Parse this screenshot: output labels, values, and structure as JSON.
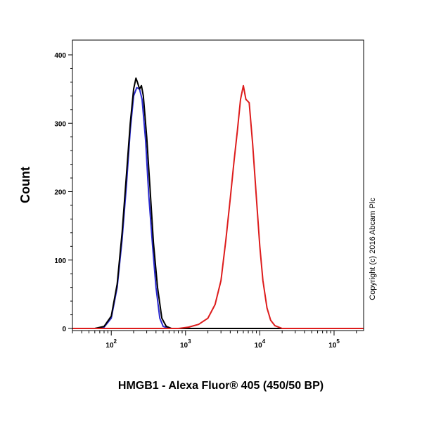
{
  "chart_data": {
    "type": "line",
    "xlabel": "HMGB1 - Alexa Fluor® 405 (450/50 BP)",
    "ylabel": "Count",
    "x_scale": "log",
    "xlim": [
      30,
      250000
    ],
    "ylim": [
      0,
      410
    ],
    "y_ticks": [
      0,
      100,
      200,
      300,
      400
    ],
    "y_tick_labels": [
      "0",
      "100",
      "200",
      "300",
      "400"
    ],
    "x_ticks": [
      100,
      1000,
      10000,
      100000
    ],
    "x_tick_labels": [
      {
        "base": "10",
        "exp": "2"
      },
      {
        "base": "10",
        "exp": "3"
      },
      {
        "base": "10",
        "exp": "4"
      },
      {
        "base": "10",
        "exp": "5"
      }
    ],
    "grid": false,
    "copyright": "Copyright (c) 2016 Abcam Plc",
    "series": [
      {
        "color": "#2a2ad0",
        "points": [
          [
            30,
            0
          ],
          [
            60,
            0
          ],
          [
            80,
            2
          ],
          [
            100,
            15
          ],
          [
            120,
            60
          ],
          [
            140,
            130
          ],
          [
            160,
            210
          ],
          [
            180,
            290
          ],
          [
            200,
            340
          ],
          [
            220,
            352
          ],
          [
            240,
            350
          ],
          [
            260,
            335
          ],
          [
            290,
            275
          ],
          [
            320,
            195
          ],
          [
            360,
            120
          ],
          [
            400,
            60
          ],
          [
            450,
            15
          ],
          [
            500,
            3
          ],
          [
            600,
            0
          ],
          [
            1000,
            0
          ],
          [
            250000,
            0
          ]
        ]
      },
      {
        "color": "#000000",
        "points": [
          [
            30,
            0
          ],
          [
            60,
            0
          ],
          [
            80,
            3
          ],
          [
            100,
            18
          ],
          [
            120,
            65
          ],
          [
            140,
            140
          ],
          [
            160,
            225
          ],
          [
            180,
            300
          ],
          [
            200,
            350
          ],
          [
            215,
            366
          ],
          [
            225,
            360
          ],
          [
            240,
            350
          ],
          [
            255,
            355
          ],
          [
            270,
            340
          ],
          [
            300,
            280
          ],
          [
            330,
            210
          ],
          [
            370,
            125
          ],
          [
            420,
            60
          ],
          [
            480,
            15
          ],
          [
            550,
            3
          ],
          [
            650,
            0
          ],
          [
            1000,
            0
          ],
          [
            250000,
            0
          ]
        ]
      },
      {
        "color": "#dd1c1c",
        "points": [
          [
            30,
            0
          ],
          [
            800,
            0
          ],
          [
            1100,
            2
          ],
          [
            1500,
            6
          ],
          [
            2000,
            15
          ],
          [
            2500,
            35
          ],
          [
            3000,
            70
          ],
          [
            3500,
            130
          ],
          [
            4000,
            190
          ],
          [
            4500,
            245
          ],
          [
            5000,
            290
          ],
          [
            5500,
            335
          ],
          [
            6000,
            355
          ],
          [
            6500,
            335
          ],
          [
            7200,
            330
          ],
          [
            8000,
            270
          ],
          [
            9000,
            190
          ],
          [
            10000,
            120
          ],
          [
            11000,
            70
          ],
          [
            12500,
            30
          ],
          [
            14000,
            12
          ],
          [
            16000,
            4
          ],
          [
            20000,
            0
          ],
          [
            250000,
            0
          ]
        ]
      }
    ]
  }
}
